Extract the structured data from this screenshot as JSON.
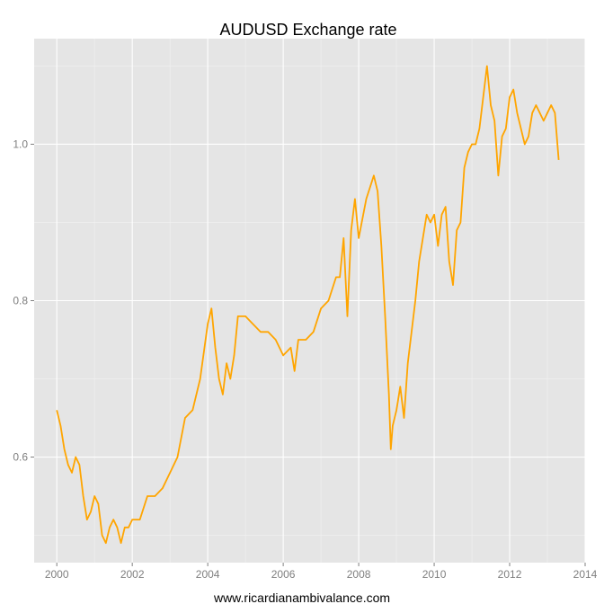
{
  "chart_data": {
    "type": "line",
    "title": "AUDUSD Exchange rate",
    "xlabel": "www.ricardianambivalance.com",
    "ylabel": "",
    "xlim": [
      1999.4,
      2014.0
    ],
    "ylim": [
      0.465,
      1.135
    ],
    "x_ticks": [
      2000,
      2002,
      2004,
      2006,
      2008,
      2010,
      2012,
      2014
    ],
    "x_tick_labels": [
      "2000",
      "2002",
      "2004",
      "2006",
      "2008",
      "2010",
      "2012",
      "2014"
    ],
    "y_ticks": [
      0.6,
      0.8,
      1.0
    ],
    "y_tick_labels": [
      "0.6",
      "0.8",
      "1.0"
    ],
    "grid": true,
    "background": "#e5e5e5",
    "series": [
      {
        "color": "#ffa500",
        "x": [
          2000.0,
          2000.1,
          2000.2,
          2000.3,
          2000.4,
          2000.5,
          2000.6,
          2000.7,
          2000.8,
          2000.9,
          2001.0,
          2001.1,
          2001.2,
          2001.3,
          2001.4,
          2001.5,
          2001.6,
          2001.7,
          2001.8,
          2001.9,
          2002.0,
          2002.2,
          2002.4,
          2002.6,
          2002.8,
          2003.0,
          2003.2,
          2003.4,
          2003.6,
          2003.8,
          2004.0,
          2004.1,
          2004.2,
          2004.3,
          2004.4,
          2004.5,
          2004.6,
          2004.7,
          2004.8,
          2005.0,
          2005.2,
          2005.4,
          2005.6,
          2005.8,
          2006.0,
          2006.2,
          2006.3,
          2006.4,
          2006.6,
          2006.8,
          2007.0,
          2007.2,
          2007.4,
          2007.5,
          2007.6,
          2007.7,
          2007.8,
          2007.9,
          2008.0,
          2008.2,
          2008.4,
          2008.5,
          2008.6,
          2008.7,
          2008.8,
          2008.85,
          2008.9,
          2009.0,
          2009.1,
          2009.2,
          2009.3,
          2009.4,
          2009.5,
          2009.6,
          2009.7,
          2009.8,
          2009.9,
          2010.0,
          2010.1,
          2010.2,
          2010.3,
          2010.4,
          2010.5,
          2010.6,
          2010.7,
          2010.8,
          2010.9,
          2011.0,
          2011.1,
          2011.2,
          2011.3,
          2011.4,
          2011.5,
          2011.6,
          2011.7,
          2011.8,
          2011.9,
          2012.0,
          2012.1,
          2012.2,
          2012.3,
          2012.4,
          2012.5,
          2012.6,
          2012.7,
          2012.8,
          2012.9,
          2013.0,
          2013.1,
          2013.2,
          2013.3
        ],
        "y": [
          0.66,
          0.64,
          0.61,
          0.59,
          0.58,
          0.6,
          0.59,
          0.55,
          0.52,
          0.53,
          0.55,
          0.54,
          0.5,
          0.49,
          0.51,
          0.52,
          0.51,
          0.49,
          0.51,
          0.51,
          0.52,
          0.52,
          0.55,
          0.55,
          0.56,
          0.58,
          0.6,
          0.65,
          0.66,
          0.7,
          0.77,
          0.79,
          0.74,
          0.7,
          0.68,
          0.72,
          0.7,
          0.73,
          0.78,
          0.78,
          0.77,
          0.76,
          0.76,
          0.75,
          0.73,
          0.74,
          0.71,
          0.75,
          0.75,
          0.76,
          0.79,
          0.8,
          0.83,
          0.83,
          0.88,
          0.78,
          0.89,
          0.93,
          0.88,
          0.93,
          0.96,
          0.94,
          0.87,
          0.78,
          0.68,
          0.61,
          0.64,
          0.66,
          0.69,
          0.65,
          0.72,
          0.76,
          0.8,
          0.85,
          0.88,
          0.91,
          0.9,
          0.91,
          0.87,
          0.91,
          0.92,
          0.85,
          0.82,
          0.89,
          0.9,
          0.97,
          0.99,
          1.0,
          1.0,
          1.02,
          1.06,
          1.1,
          1.05,
          1.03,
          0.96,
          1.01,
          1.02,
          1.06,
          1.07,
          1.04,
          1.02,
          1.0,
          1.01,
          1.04,
          1.05,
          1.04,
          1.03,
          1.04,
          1.05,
          1.04,
          0.98
        ]
      }
    ]
  }
}
